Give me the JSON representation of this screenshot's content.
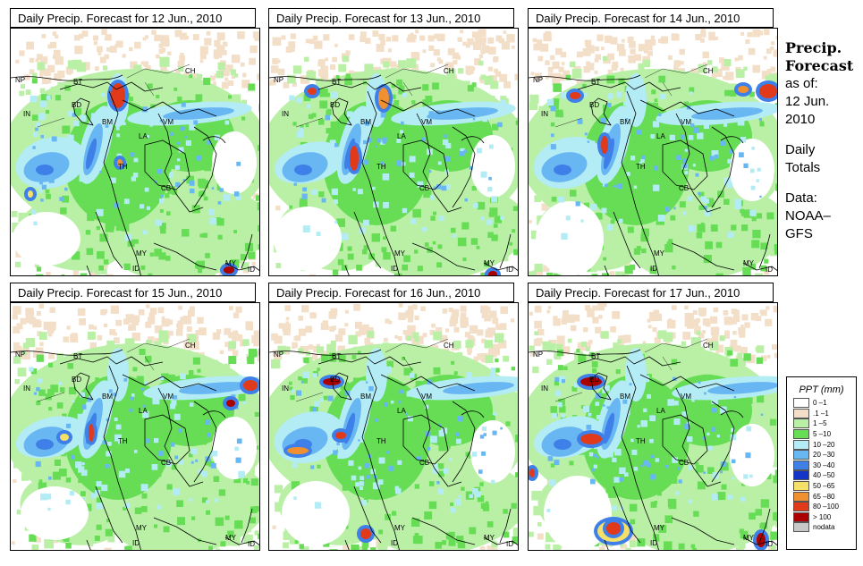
{
  "panels": [
    {
      "title": "Daily Precip. Forecast for  12 Jun., 2010"
    },
    {
      "title": "Daily Precip. Forecast for  13 Jun., 2010"
    },
    {
      "title": "Daily Precip. Forecast for  14 Jun., 2010"
    },
    {
      "title": "Daily Precip. Forecast for  15 Jun., 2010"
    },
    {
      "title": "Daily Precip. Forecast for  16 Jun., 2010"
    },
    {
      "title": "Daily Precip. Forecast for  17 Jun., 2010"
    }
  ],
  "map_labels": {
    "np": "NP",
    "bt": "BT",
    "ch": "CH",
    "in": "IN",
    "bd": "BD",
    "bm": "BM",
    "vm": "VM",
    "la": "LA",
    "th": "TH",
    "cb": "CB",
    "my": "MY",
    "id": "ID"
  },
  "side_panel": {
    "title_line1": "Precip.",
    "title_line2": "Forecast",
    "asof_line1": "as of:",
    "asof_line2": "12 Jun.",
    "asof_line3": "2010",
    "daily_line1": "Daily",
    "daily_line2": "Totals",
    "data_line1": "Data:",
    "data_line2": "NOAA–",
    "data_line3": "GFS"
  },
  "legend": {
    "title": "PPT (mm)",
    "entries": [
      {
        "label": "0 –1",
        "color": "#ffffff"
      },
      {
        "label": ".1 –1",
        "color": "#f3dfc8"
      },
      {
        "label": "1 –5",
        "color": "#b9f0a6"
      },
      {
        "label": "5 –10",
        "color": "#66dd55"
      },
      {
        "label": "10 –20",
        "color": "#b4ecf6"
      },
      {
        "label": "20 –30",
        "color": "#69b7f2"
      },
      {
        "label": "30 –40",
        "color": "#3f7fe8"
      },
      {
        "label": "40 –50",
        "color": "#1434c8"
      },
      {
        "label": "50 –65",
        "color": "#f5e16a"
      },
      {
        "label": "65 –80",
        "color": "#f09030"
      },
      {
        "label": "80 –100",
        "color": "#e03a1a"
      },
      {
        "label": "> 100",
        "color": "#aa0000"
      },
      {
        "label": "nodata",
        "color": "#c8c8c8"
      }
    ]
  }
}
